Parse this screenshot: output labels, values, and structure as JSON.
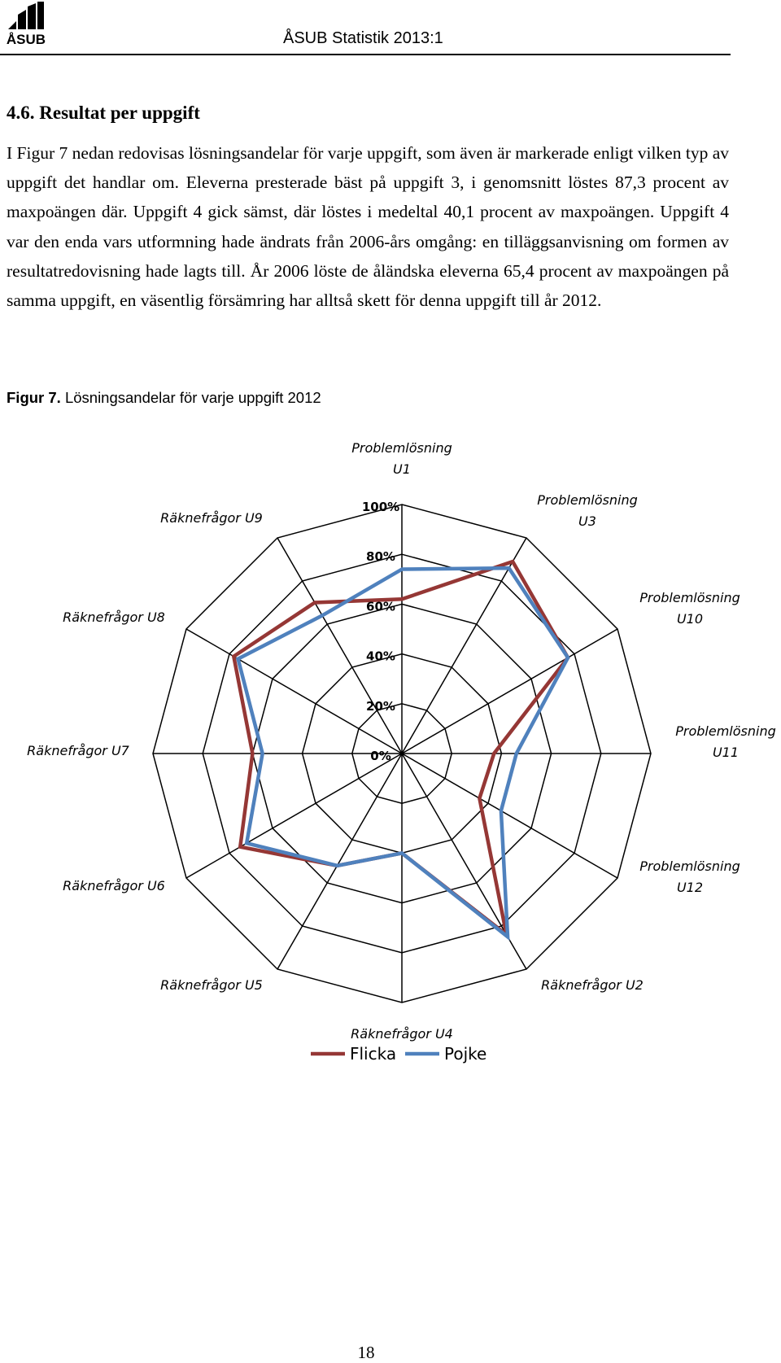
{
  "header": {
    "logo_text": "ÅSUB",
    "title": "ÅSUB Statistik 2013:1"
  },
  "section": {
    "heading": "4.6. Resultat per uppgift",
    "paragraph": "I Figur 7 nedan redovisas lösningsandelar för varje uppgift, som även är markerade enligt vilken typ av uppgift det handlar om. Eleverna presterade bäst på uppgift 3, i genomsnitt löstes 87,3 procent av maxpoängen där. Uppgift 4 gick sämst, där löstes i medeltal 40,1 procent av maxpoängen. Uppgift 4 var den enda vars utformning hade ändrats från 2006-års omgång: en tilläggsanvisning om formen av resultatredovisning hade lagts till. År 2006 löste de åländska eleverna 65,4 procent av maxpoängen på samma uppgift, en väsentlig försämring har alltså skett för denna uppgift till år 2012."
  },
  "figure": {
    "caption_label": "Figur 7.",
    "caption_text": " Lösningsandelar för varje uppgift 2012"
  },
  "chart_data": {
    "type": "radar",
    "categories": [
      "Problemlösning U1",
      "Problemlösning U3",
      "Problemlösning U10",
      "Problemlösning U11",
      "Problemlösning U12",
      "Räknefrågor U2",
      "Räknefrågor U4",
      "Räknefrågor U5",
      "Räknefrågor U6",
      "Räknefrågor U7",
      "Räknefrågor U8",
      "Räknefrågor U9"
    ],
    "axis_ticks": [
      "0%",
      "20%",
      "40%",
      "60%",
      "80%",
      "100%"
    ],
    "rlim": [
      0,
      100
    ],
    "grid": true,
    "legend_position": "bottom",
    "series": [
      {
        "name": "Flicka",
        "color": "#953735",
        "values": [
          62,
          89,
          77,
          37,
          36,
          84,
          40,
          52,
          75,
          60,
          78,
          70
        ]
      },
      {
        "name": "Pojke",
        "color": "#4f81bd",
        "values": [
          74,
          86,
          77,
          46,
          46,
          85,
          40,
          52,
          72,
          56,
          76,
          64
        ]
      }
    ]
  },
  "footer": {
    "page_number": "18"
  }
}
